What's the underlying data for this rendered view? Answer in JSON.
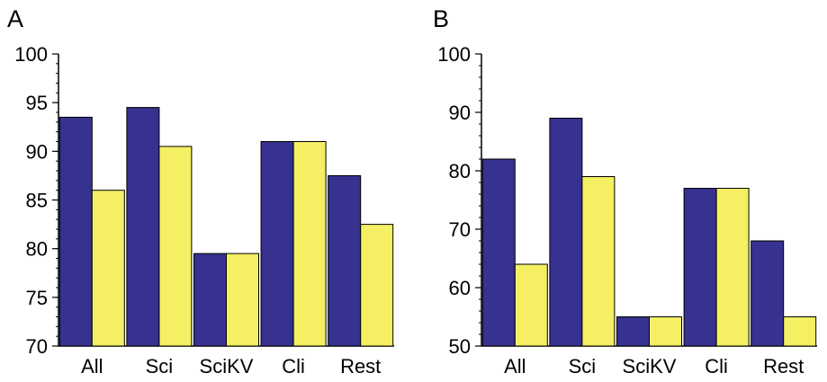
{
  "figure": {
    "panels": [
      "A",
      "B"
    ]
  },
  "chart_data": [
    {
      "type": "bar",
      "panel": "A",
      "title": "",
      "xlabel": "",
      "ylabel": "",
      "categories": [
        "All",
        "Sci",
        "SciKV",
        "Cli",
        "Rest"
      ],
      "series": [
        {
          "values": [
            93.5,
            94.5,
            79.5,
            91.0,
            87.5
          ],
          "color": "#37318f"
        },
        {
          "values": [
            86.0,
            90.5,
            79.5,
            91.0,
            82.5
          ],
          "color": "#f4ef63"
        }
      ],
      "ylim": [
        70,
        100
      ],
      "yticks": [
        70,
        75,
        80,
        85,
        90,
        95,
        100
      ],
      "minor_tick_step": 1,
      "grid": false,
      "legend": "none"
    },
    {
      "type": "bar",
      "panel": "B",
      "title": "",
      "xlabel": "",
      "ylabel": "",
      "categories": [
        "All",
        "Sci",
        "SciKV",
        "Cli",
        "Rest"
      ],
      "series": [
        {
          "values": [
            82,
            89,
            55,
            77,
            68
          ],
          "color": "#37318f"
        },
        {
          "values": [
            64,
            79,
            55,
            77,
            55
          ],
          "color": "#f4ef63"
        }
      ],
      "ylim": [
        50,
        100
      ],
      "yticks": [
        50,
        60,
        70,
        80,
        90,
        100
      ],
      "minor_tick_step": 2,
      "grid": false,
      "legend": "none"
    }
  ]
}
